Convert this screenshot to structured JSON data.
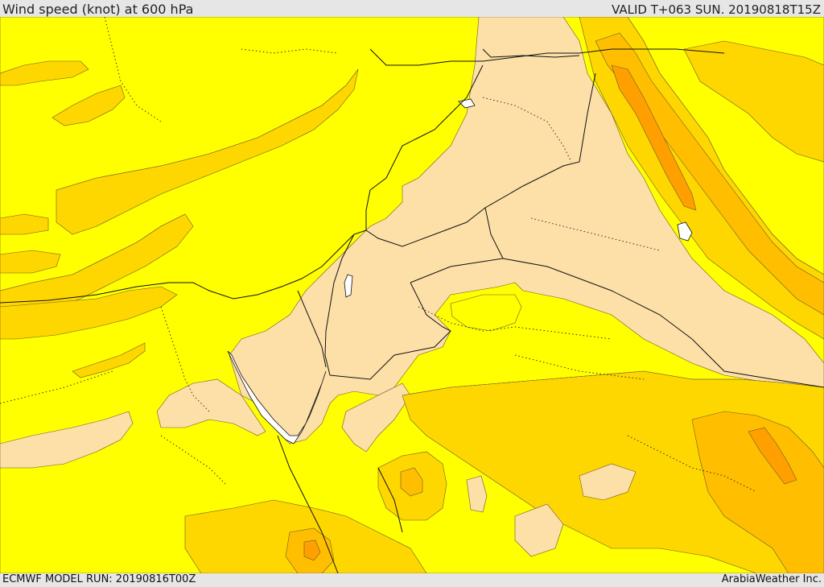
{
  "header": {
    "title": "Wind speed (knot) at 600 hPa",
    "valid": "VALID T+063 SUN. 20190818T15Z"
  },
  "footer": {
    "model_run": "ECMWF MODEL RUN: 20190816T00Z",
    "credit": "ArabiaWeather Inc."
  },
  "map": {
    "fill_levels": [
      {
        "name": "light",
        "color": "#fde0a8"
      },
      {
        "name": "yellow",
        "color": "#ffff00"
      },
      {
        "name": "gold",
        "color": "#ffd700"
      },
      {
        "name": "amber",
        "color": "#ffbf00"
      },
      {
        "name": "orange",
        "color": "#ffa000"
      },
      {
        "name": "dark-orange",
        "color": "#f78c10"
      }
    ],
    "water_color": "#ffffff",
    "border_color": "#111111"
  }
}
